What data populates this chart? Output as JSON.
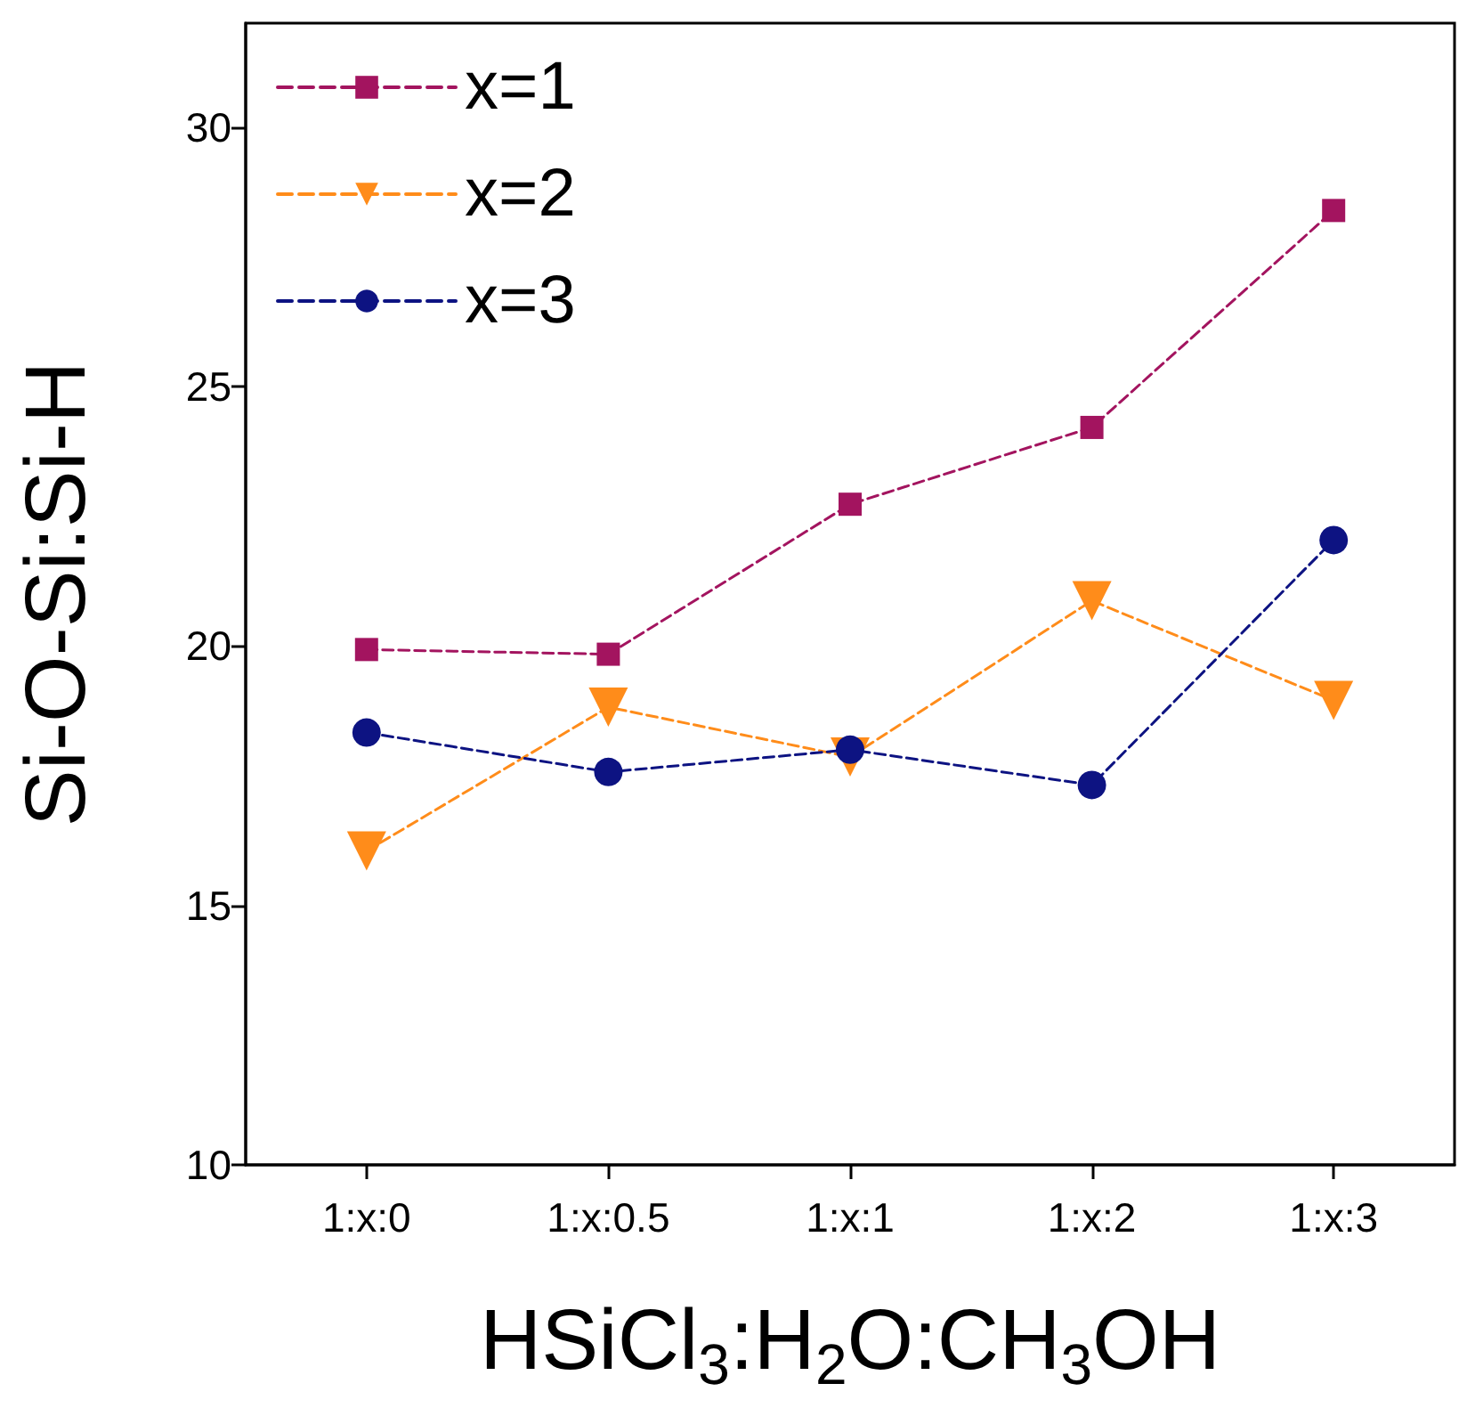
{
  "chart_data": {
    "type": "line",
    "xlabel": "HSiCl$_{3}$:H$_{2}$O:CH$_{3}$OH",
    "ylabel": "Si-O-Si:Si-H",
    "categories": [
      "1:x:0",
      "1:x:0.5",
      "1:x:1",
      "1:x:2",
      "1:x:3"
    ],
    "series": [
      {
        "name": "x=1",
        "color": "#a3145f",
        "marker": "square",
        "values": [
          19.93,
          19.84,
          22.73,
          24.21,
          28.39
        ]
      },
      {
        "name": "x=2",
        "color": "#ff8c1a",
        "marker": "triangle",
        "values": [
          16.05,
          18.82,
          17.86,
          20.87,
          18.95
        ]
      },
      {
        "name": "x=3",
        "color": "#0d1382",
        "marker": "circle",
        "values": [
          18.33,
          17.57,
          18.0,
          17.32,
          22.04
        ]
      }
    ],
    "ylim": [
      10,
      32
    ],
    "yticks": [
      10,
      15,
      20,
      25,
      30
    ],
    "grid": false,
    "legend": "top left",
    "line_style": "dashed"
  }
}
